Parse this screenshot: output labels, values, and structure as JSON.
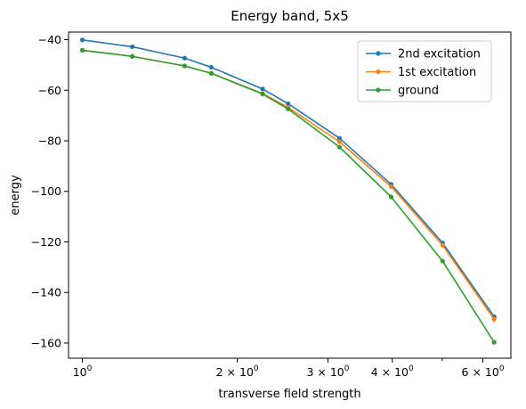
{
  "chart_data": {
    "type": "line",
    "title": "Energy band, 5x5",
    "xlabel": "transverse field strength",
    "ylabel": "energy",
    "xscale": "log",
    "xlim": [
      0.94,
      6.8
    ],
    "ylim": [
      -166,
      -37
    ],
    "grid": false,
    "legend_position": "top-right",
    "x": [
      1.0,
      1.25,
      1.58,
      1.78,
      2.24,
      2.51,
      3.16,
      3.98,
      5.01,
      6.31
    ],
    "x_ticks": [
      {
        "value": 1,
        "label_base": "10",
        "label_sup": "0"
      },
      {
        "value": 2,
        "label_base": "2 × 10",
        "label_sup": "0"
      },
      {
        "value": 3,
        "label_base": "3 × 10",
        "label_sup": "0"
      },
      {
        "value": 4,
        "label_base": "4 × 10",
        "label_sup": "0"
      },
      {
        "value": 6,
        "label_base": "6 × 10",
        "label_sup": "0"
      }
    ],
    "minor_x_ticks": [
      5
    ],
    "y_ticks": [
      -40,
      -60,
      -80,
      -100,
      -120,
      -140,
      -160
    ],
    "series": [
      {
        "name": "2nd excitation",
        "color": "#1f77b4",
        "values": [
          -40.1,
          -42.8,
          -47.3,
          -50.9,
          -59.5,
          -65.3,
          -79.0,
          -97.2,
          -120.4,
          -149.6
        ]
      },
      {
        "name": "1st excitation",
        "color": "#ff7f0e",
        "values": [
          -44.2,
          -46.6,
          -50.4,
          -53.3,
          -61.3,
          -66.8,
          -80.4,
          -98.1,
          -121.3,
          -150.6
        ]
      },
      {
        "name": "ground",
        "color": "#2ca02c",
        "values": [
          -44.2,
          -46.6,
          -50.4,
          -53.3,
          -61.5,
          -67.4,
          -82.5,
          -102.2,
          -127.6,
          -159.7
        ]
      }
    ]
  }
}
